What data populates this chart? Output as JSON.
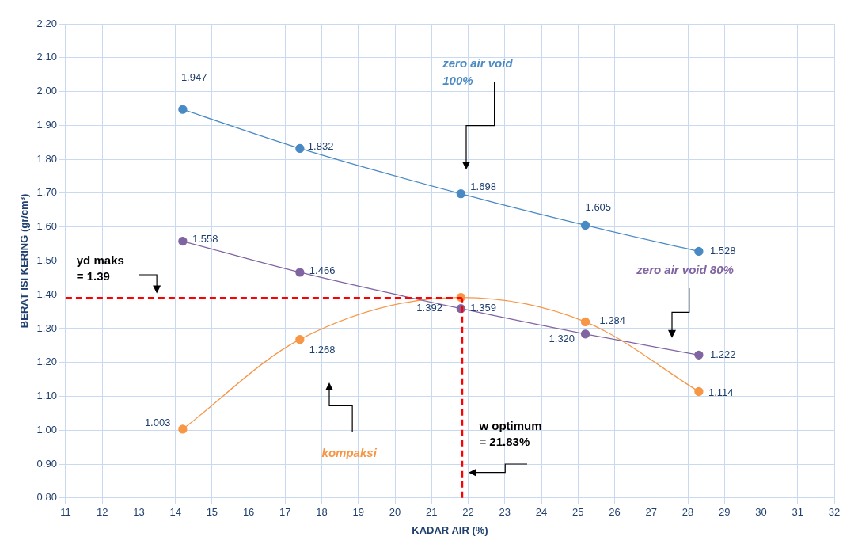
{
  "chart_data": {
    "type": "line",
    "xlabel": "KADAR AIR (%)",
    "ylabel": "BERAT ISI KERING (gr/cm³)",
    "xlim": [
      11,
      32
    ],
    "xticks": [
      11,
      12,
      13,
      14,
      15,
      16,
      17,
      18,
      19,
      20,
      21,
      22,
      23,
      24,
      25,
      26,
      27,
      28,
      29,
      30,
      31,
      32
    ],
    "ylim": [
      0.8,
      2.2
    ],
    "yticks": [
      {
        "value": 0.8,
        "label": "0.80"
      },
      {
        "value": 0.9,
        "label": "0.90"
      },
      {
        "value": 1.0,
        "label": "1.00"
      },
      {
        "value": 1.1,
        "label": "1.10"
      },
      {
        "value": 1.2,
        "label": "1.20"
      },
      {
        "value": 1.3,
        "label": "1.30"
      },
      {
        "value": 1.4,
        "label": "1.40"
      },
      {
        "value": 1.5,
        "label": "1.50"
      },
      {
        "value": 1.6,
        "label": "1.60"
      },
      {
        "value": 1.7,
        "label": "1.70"
      },
      {
        "value": 1.8,
        "label": "1.80"
      },
      {
        "value": 1.9,
        "label": "1.90"
      },
      {
        "value": 2.0,
        "label": "2.00"
      },
      {
        "value": 2.1,
        "label": "2.10"
      },
      {
        "value": 2.2,
        "label": "2.20"
      }
    ],
    "grid": true,
    "legend": false,
    "marker": "circle",
    "line_style": "solid",
    "x": [
      14.2,
      17.4,
      21.8,
      25.2,
      28.3
    ],
    "series": [
      {
        "name": "zero air void 100%",
        "color": "#4a8ac4",
        "values": [
          1.947,
          1.832,
          1.698,
          1.605,
          1.528
        ],
        "value_labels": [
          "1.947",
          "1.832",
          "1.698",
          "1.605",
          "1.528"
        ]
      },
      {
        "name": "zero air void 80%",
        "color": "#8064a2",
        "values": [
          1.558,
          1.466,
          1.359,
          1.284,
          1.222
        ],
        "value_labels": [
          "1.558",
          "1.466",
          "1.359",
          "1.284",
          "1.222"
        ]
      },
      {
        "name": "kompaksi",
        "color": "#f79646",
        "values": [
          1.003,
          1.268,
          1.392,
          1.32,
          1.114
        ],
        "value_labels": [
          "1.003",
          "1.268",
          "1.392",
          "1.320",
          "1.114"
        ]
      }
    ],
    "ref_lines": [
      {
        "axis": "y",
        "value": 1.39,
        "label": "yd maks\n= 1.39",
        "color": "#ff0000",
        "line_style": "dashed"
      },
      {
        "axis": "x",
        "value": 21.83,
        "label": "w optimum\n= 21.83%",
        "color": "#ff0000",
        "line_style": "dashed"
      }
    ]
  }
}
